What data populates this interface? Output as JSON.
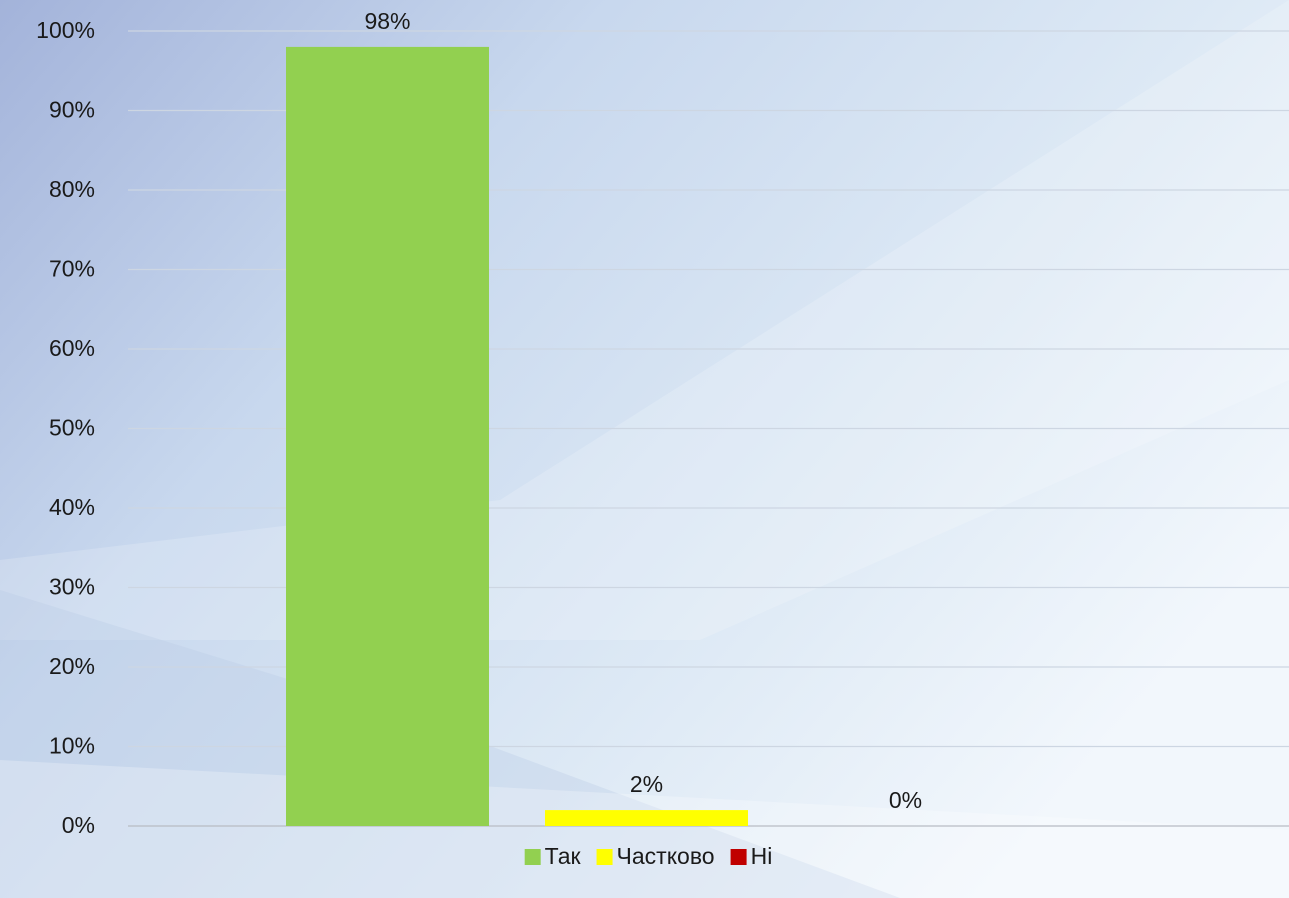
{
  "chart_data": {
    "type": "bar",
    "categories": [
      null
    ],
    "series": [
      {
        "name": "Так",
        "color": "#92d050",
        "values": [
          98
        ],
        "value_labels": [
          "98%"
        ]
      },
      {
        "name": "Частково",
        "color": "#ffff00",
        "values": [
          2
        ],
        "value_labels": [
          "2%"
        ]
      },
      {
        "name": "Ні",
        "color": "#c00000",
        "values": [
          0
        ],
        "value_labels": [
          "0%"
        ]
      }
    ],
    "ylim": [
      0,
      100
    ],
    "yticks": [
      {
        "value": 0,
        "label": "0%"
      },
      {
        "value": 10,
        "label": "10%"
      },
      {
        "value": 20,
        "label": "20%"
      },
      {
        "value": 30,
        "label": "30%"
      },
      {
        "value": 40,
        "label": "40%"
      },
      {
        "value": 50,
        "label": "50%"
      },
      {
        "value": 60,
        "label": "60%"
      },
      {
        "value": 70,
        "label": "70%"
      },
      {
        "value": 80,
        "label": "80%"
      },
      {
        "value": 90,
        "label": "90%"
      },
      {
        "value": 100,
        "label": "100%"
      }
    ],
    "grid": true,
    "legend": "bottom"
  }
}
